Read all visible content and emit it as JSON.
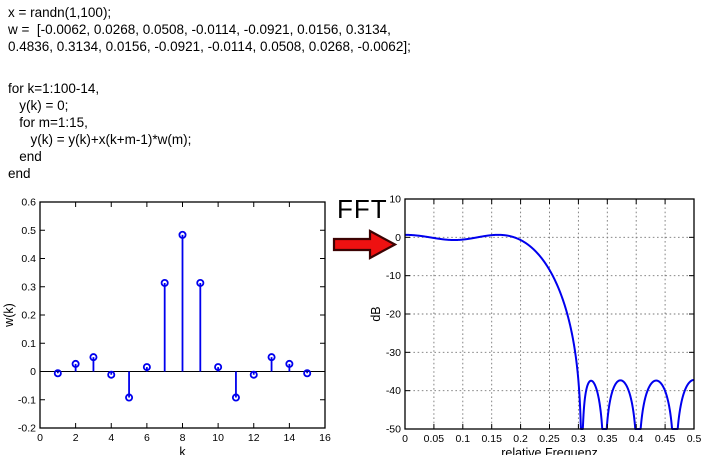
{
  "page": {
    "background": "#ffffff"
  },
  "code": {
    "block1_lines": [
      "x = randn(1,100);",
      "w =  [-0.0062, 0.0268, 0.0508, -0.0114, -0.0921, 0.0156, 0.3134,",
      "0.4836, 0.3134, 0.0156, -0.0921, -0.0114, 0.0508, 0.0268, -0.0062];"
    ],
    "block2_lines": [
      "for k=1:100-14,",
      "   y(k) = 0;",
      "   for m=1:15,",
      "      y(k) = y(k)+x(k+m-1)*w(m);",
      "   end",
      "end"
    ]
  },
  "arrow": {
    "label": "FFT",
    "fill": "#ee1111",
    "outline": "#3c0303"
  },
  "colors": {
    "series": "#0000ee",
    "axis": "#000000",
    "grid": "#777777",
    "text": "#000000"
  },
  "chart_data": [
    {
      "type": "stem",
      "title": "",
      "xlabel": "k",
      "ylabel": "w(k)",
      "x": [
        1,
        2,
        3,
        4,
        5,
        6,
        7,
        8,
        9,
        10,
        11,
        12,
        13,
        14,
        15
      ],
      "values": [
        -0.0062,
        0.0268,
        0.0508,
        -0.0114,
        -0.0921,
        0.0156,
        0.3134,
        0.4836,
        0.3134,
        0.0156,
        -0.0921,
        -0.0114,
        0.0508,
        0.0268,
        -0.0062
      ],
      "xlim": [
        0,
        16
      ],
      "ylim": [
        -0.2,
        0.6
      ],
      "x_tick_values": [
        0,
        2,
        4,
        6,
        8,
        10,
        12,
        14,
        16
      ],
      "x_tick_labels": [
        "0",
        "2",
        "4",
        "6",
        "8",
        "10",
        "12",
        "14",
        "16"
      ],
      "y_tick_values": [
        -0.2,
        -0.1,
        0,
        0.1,
        0.2,
        0.3,
        0.4,
        0.5,
        0.6
      ],
      "y_tick_labels": [
        "-0.2",
        "-0.1",
        "0",
        "0.1",
        "0.2",
        "0.3",
        "0.4",
        "0.5",
        "0.6"
      ],
      "grid": false,
      "zero_line": true,
      "marker": "hollow-circle"
    },
    {
      "type": "line",
      "title": "",
      "xlabel": "relative Frequenz",
      "ylabel": "dB",
      "xlim": [
        0,
        0.5
      ],
      "ylim": [
        -50,
        10
      ],
      "x_tick_values": [
        0,
        0.05,
        0.1,
        0.15,
        0.2,
        0.25,
        0.3,
        0.35,
        0.4,
        0.45,
        0.5
      ],
      "x_tick_labels": [
        "0",
        "0.05",
        "0.1",
        "0.15",
        "0.2",
        "0.25",
        "0.3",
        "0.35",
        "0.4",
        "0.45",
        "0.5"
      ],
      "y_tick_values": [
        10,
        0,
        -10,
        -20,
        -30,
        -40,
        -50
      ],
      "y_tick_labels": [
        "10",
        "0",
        "-10",
        "-20",
        "-30",
        "-40",
        "-50"
      ],
      "grid": true,
      "grid_style": "dotted",
      "curve": "magnitude_dB_of_DFT_of_coefficients",
      "coefficients": [
        -0.0062,
        0.0268,
        0.0508,
        -0.0114,
        -0.0921,
        0.0156,
        0.3134,
        0.4836,
        0.3134,
        0.0156,
        -0.0921,
        -0.0114,
        0.0508,
        0.0268,
        -0.0062
      ],
      "samples_readoff": [
        {
          "f": 0,
          "dB": 0.6
        },
        {
          "f": 0.05,
          "dB": 0.0
        },
        {
          "f": 0.09,
          "dB": -0.9
        },
        {
          "f": 0.13,
          "dB": 0.2
        },
        {
          "f": 0.165,
          "dB": 0.6
        },
        {
          "f": 0.19,
          "dB": 0.2
        },
        {
          "f": 0.2,
          "dB": -1.2
        },
        {
          "f": 0.225,
          "dB": -4
        },
        {
          "f": 0.25,
          "dB": -10
        },
        {
          "f": 0.275,
          "dB": -20
        },
        {
          "f": 0.29,
          "dB": -28
        },
        {
          "f": 0.3,
          "dB": -38
        },
        {
          "f": 0.306,
          "dB": -50
        },
        {
          "f": 0.322,
          "dB": -37
        },
        {
          "f": 0.346,
          "dB": -50
        },
        {
          "f": 0.375,
          "dB": -37
        },
        {
          "f": 0.406,
          "dB": -50
        },
        {
          "f": 0.435,
          "dB": -37
        },
        {
          "f": 0.466,
          "dB": -50
        },
        {
          "f": 0.5,
          "dB": -37
        }
      ]
    }
  ]
}
